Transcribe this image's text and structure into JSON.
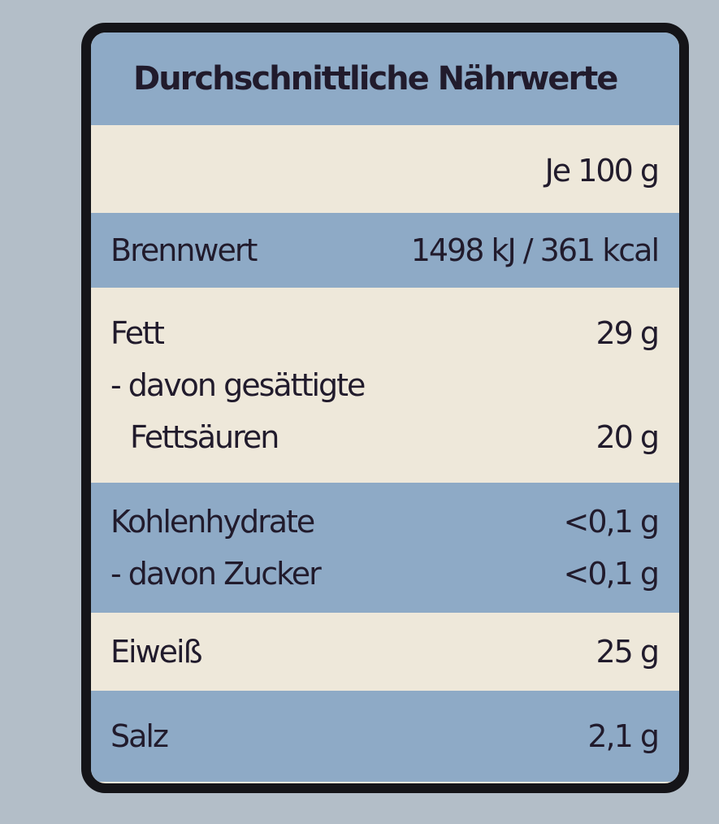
{
  "header": {
    "title": "Durchschnittliche Nährwerte",
    "column": "Je 100 g"
  },
  "table": {
    "sections": [
      {
        "rows": [
          {
            "label": "Brennwert",
            "value": "1498 kJ / 361 kcal"
          }
        ]
      },
      {
        "rows": [
          {
            "label": "Fett",
            "value": "29 g"
          },
          {
            "label": "- davon gesättigte"
          },
          {
            "label": "Fettsäuren",
            "value": "20 g"
          }
        ]
      },
      {
        "rows": [
          {
            "label": "Kohlenhydrate",
            "value": "<0,1 g"
          },
          {
            "label": "- davon Zucker",
            "value": "<0,1 g"
          }
        ]
      },
      {
        "rows": [
          {
            "label": "Eiweiß",
            "value": "25 g"
          }
        ]
      },
      {
        "rows": [
          {
            "label": "Salz",
            "value": "2,1 g"
          }
        ]
      }
    ]
  }
}
